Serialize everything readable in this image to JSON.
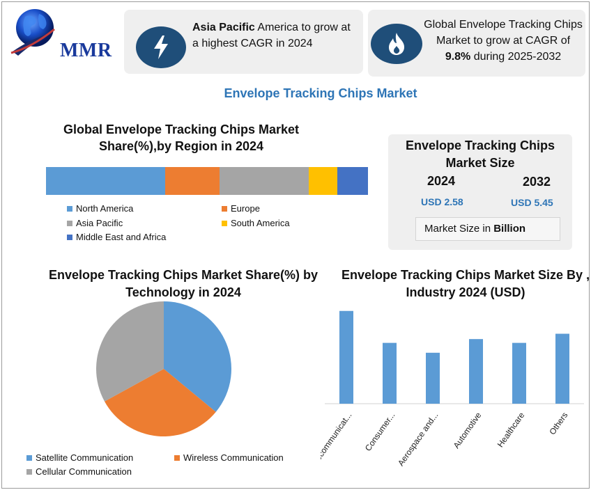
{
  "logo": {
    "text": "MMR"
  },
  "highlights": {
    "card1": {
      "bold": "Asia Pacific",
      "rest": " America to grow at a highest CAGR in 2024",
      "icon": "lightning-icon"
    },
    "card2": {
      "pre": "Global Envelope Tracking Chips Market to grow at CAGR of ",
      "bold": "9.8%",
      "post": " during 2025-2032",
      "icon": "flame-icon"
    }
  },
  "main_title": "Envelope Tracking Chips Market",
  "market_size": {
    "title": "Envelope Tracking Chips Market Size",
    "year1": "2024",
    "year2": "2032",
    "value1": "USD 2.58",
    "value2": "USD 5.45",
    "unit_prefix": "Market Size in ",
    "unit_bold": "Billion"
  },
  "colors": {
    "blue": "#5b9bd5",
    "orange": "#ed7d31",
    "gray": "#a5a5a5",
    "yellow": "#ffc000",
    "dark_blue": "#4472c4",
    "navy": "#1f4e79",
    "title_blue": "#2e75b6"
  },
  "chart_data": [
    {
      "type": "bar",
      "orientation": "horizontal-stacked",
      "title": "Global Envelope Tracking Chips Market Share(%),by Region in 2024",
      "series": [
        {
          "name": "North America",
          "value": 37,
          "color": "#5b9bd5"
        },
        {
          "name": "Europe",
          "value": 17,
          "color": "#ed7d31"
        },
        {
          "name": "Asia Pacific",
          "value": 27.5,
          "color": "#a5a5a5"
        },
        {
          "name": "South America",
          "value": 9,
          "color": "#ffc000"
        },
        {
          "name": "Middle East and Africa",
          "value": 9.5,
          "color": "#4472c4"
        }
      ],
      "legend": "bottom"
    },
    {
      "type": "pie",
      "title": "Envelope Tracking Chips Market Share(%) by Technology  in 2024",
      "series": [
        {
          "name": "Satellite Communication",
          "value": 36,
          "color": "#5b9bd5"
        },
        {
          "name": "Wireless Communication",
          "value": 31,
          "color": "#ed7d31"
        },
        {
          "name": "Cellular Communication",
          "value": 33,
          "color": "#a5a5a5"
        }
      ],
      "legend": "bottom"
    },
    {
      "type": "bar",
      "title": "Envelope Tracking Chips Market Size By , Industry  2024  (USD)",
      "categories": [
        "Telecommunicat...",
        "Consumer...",
        "Aerospace and...",
        "Automotive",
        "Healthcare",
        "Others"
      ],
      "values": [
        122,
        80,
        67,
        85,
        80,
        92
      ],
      "ylim": [
        0,
        130
      ],
      "color": "#5b9bd5",
      "grid": false
    }
  ]
}
